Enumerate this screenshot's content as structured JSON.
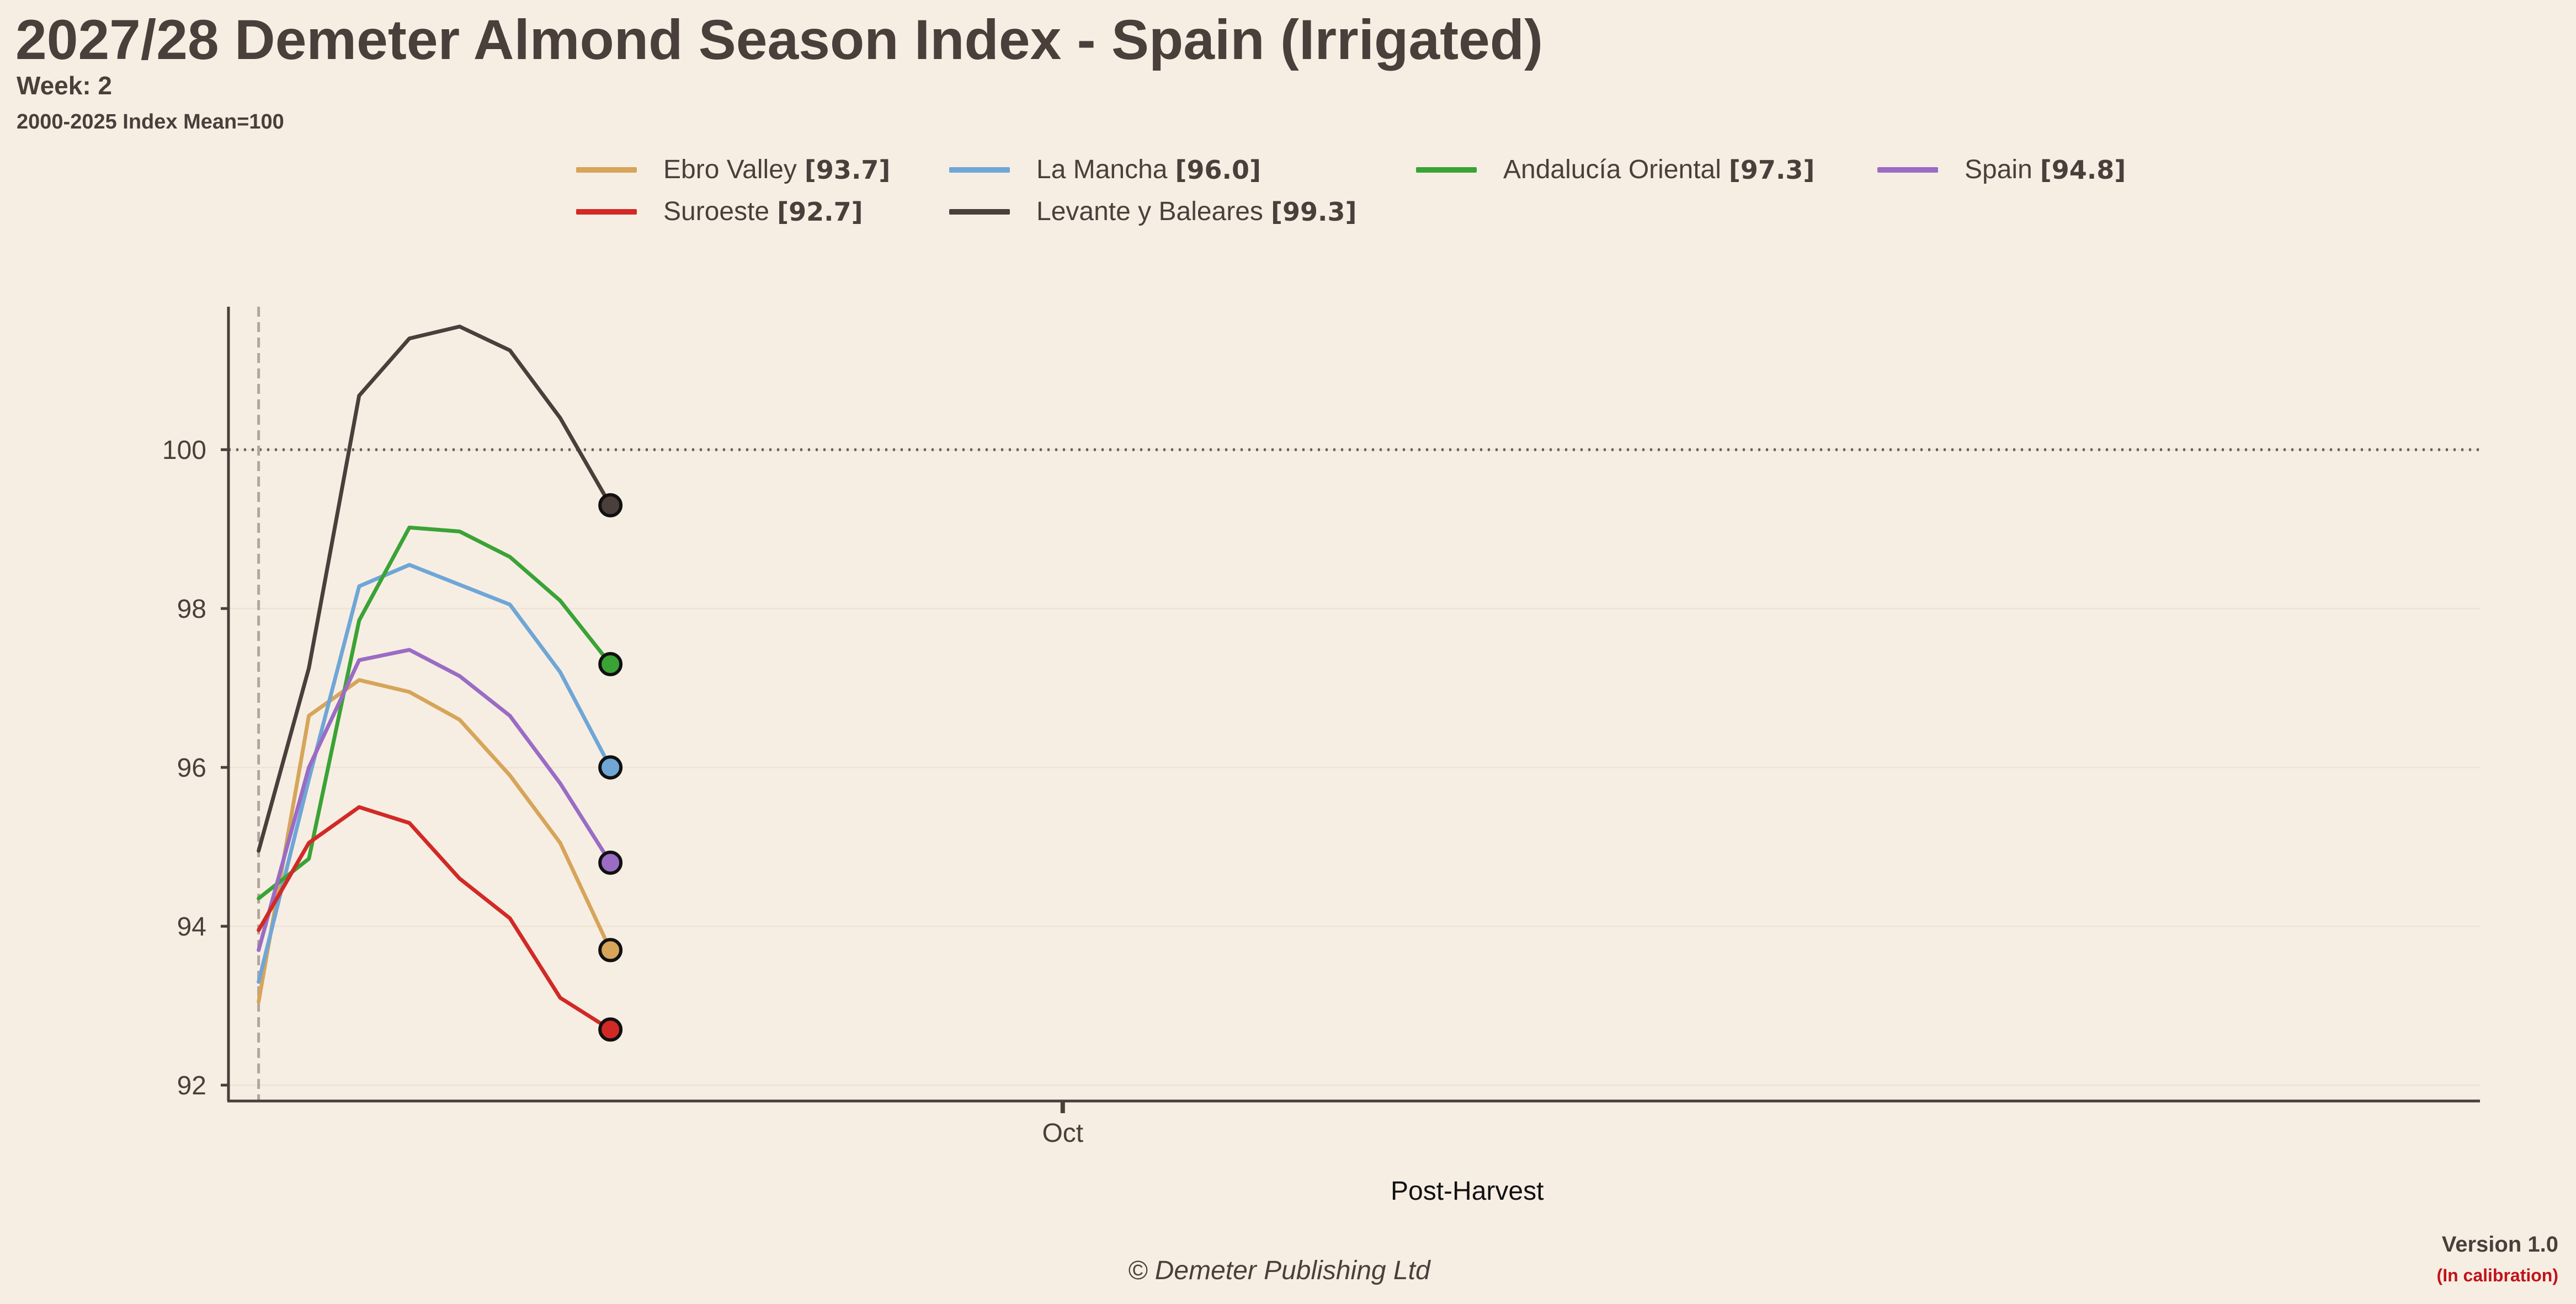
{
  "title": "2027/28 Demeter Almond Season Index - Spain (Irrigated)",
  "subtitle": "Week: 2",
  "note": "2000-2025 Index Mean=100",
  "footer": "© Demeter Publishing Ltd",
  "version": "Version 1.0",
  "calibration": "(In calibration)",
  "colors": {
    "background": "#f7eee3",
    "text": "#4a3f3a",
    "calibration": "#c0141b",
    "reference_line": "#6b5f58",
    "start_marker": "#b0a69d"
  },
  "legend": [
    {
      "name": "Ebro Valley",
      "value": "[93.7]",
      "color": "#d6a55a"
    },
    {
      "name": "La Mancha",
      "value": "[96.0]",
      "color": "#6fa6d6"
    },
    {
      "name": "Andalucía Oriental",
      "value": "[97.3]",
      "color": "#3aa336"
    },
    {
      "name": "Spain",
      "value": "[94.8]",
      "color": "#9a6cc4"
    },
    {
      "name": "Suroeste",
      "value": "[92.7]",
      "color": "#d12a26"
    },
    {
      "name": "Levante y Baleares",
      "value": "[99.3]",
      "color": "#4a3f3a"
    }
  ],
  "chart_data": {
    "type": "line",
    "title": "2027/28 Demeter Almond Season Index - Spain (Irrigated)",
    "xlabel": "Post-Harvest",
    "ylabel": "",
    "x": [
      0,
      1,
      2,
      3,
      4,
      5,
      6,
      7
    ],
    "xlim": [
      -0.6,
      44.2
    ],
    "x_ticks": [
      {
        "x": 16,
        "label": "Oct"
      }
    ],
    "ylim": [
      91.8,
      101.8
    ],
    "y_ticks": [
      92,
      94,
      96,
      98,
      100
    ],
    "reference_line_y": 100,
    "start_marker_x": 0,
    "grid": "horizontal",
    "legend_position": "top",
    "series": [
      {
        "name": "Ebro Valley",
        "color": "#d6a55a",
        "values": [
          93.05,
          96.65,
          97.1,
          96.95,
          96.6,
          95.9,
          95.05,
          93.7
        ]
      },
      {
        "name": "La Mancha",
        "color": "#6fa6d6",
        "values": [
          93.3,
          95.85,
          98.28,
          98.55,
          98.3,
          98.05,
          97.2,
          96.0
        ]
      },
      {
        "name": "Andalucía Oriental",
        "color": "#3aa336",
        "values": [
          94.35,
          94.85,
          97.85,
          99.02,
          98.97,
          98.65,
          98.1,
          97.3
        ]
      },
      {
        "name": "Spain",
        "color": "#9a6cc4",
        "values": [
          93.7,
          96.0,
          97.35,
          97.48,
          97.15,
          96.65,
          95.8,
          94.8
        ]
      },
      {
        "name": "Suroeste",
        "color": "#d12a26",
        "values": [
          93.95,
          95.05,
          95.5,
          95.3,
          94.6,
          94.1,
          93.1,
          92.7
        ]
      },
      {
        "name": "Levante y Baleares",
        "color": "#4a3f3a",
        "values": [
          94.95,
          97.25,
          100.68,
          101.4,
          101.55,
          101.25,
          100.4,
          99.3
        ]
      }
    ]
  }
}
